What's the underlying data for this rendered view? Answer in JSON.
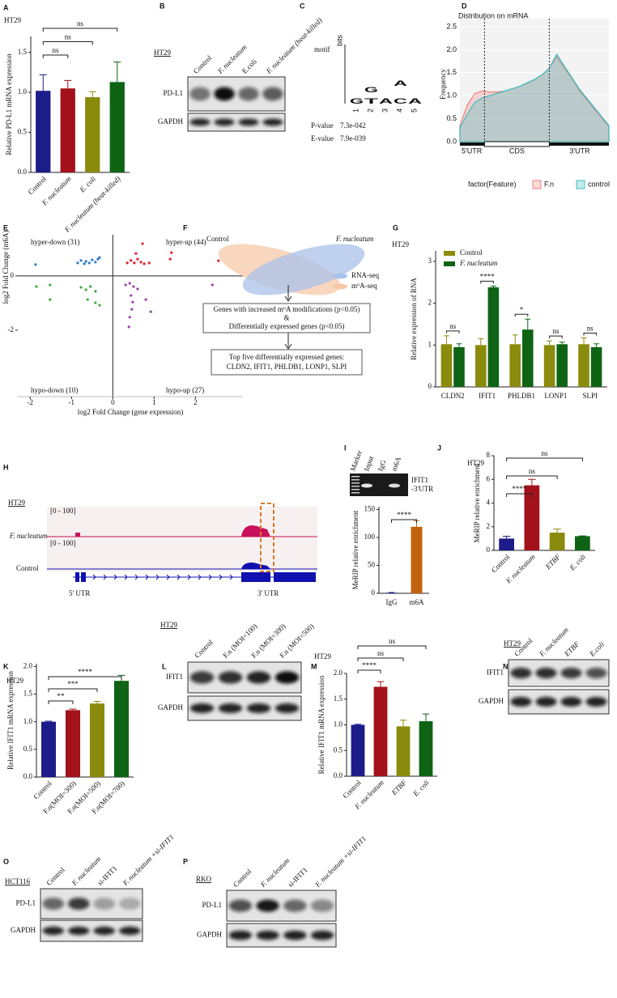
{
  "chart_data": [
    {
      "type": "bar",
      "panel": "A",
      "header": "HT29",
      "ylabel": "Relative PD-L1 mRNA expression",
      "categories": [
        "Control",
        "F. nucleatum",
        "E. coli",
        "F. nucleatum (heat-killed)"
      ],
      "values": [
        1.02,
        1.05,
        0.94,
        1.13
      ],
      "errors": [
        0.2,
        0.1,
        0.07,
        0.25
      ],
      "colors": [
        "#1c1c8a",
        "#a3121a",
        "#8a8a0c",
        "#0e6414"
      ],
      "ylim": [
        0,
        1.7
      ],
      "yticks": [
        {
          "value": 0,
          "label": "0.0"
        },
        {
          "value": 0.5,
          "label": "0.5"
        },
        {
          "value": 1,
          "label": "1.0"
        },
        {
          "value": 1.5,
          "label": "1.5"
        }
      ],
      "significance": [
        "ns",
        "ns",
        "ns"
      ]
    },
    {
      "type": "area",
      "panel": "D",
      "title": "Distribution on mRNA",
      "ylabel": "Frequency",
      "ylim": [
        0,
        2.5
      ],
      "yticks": [
        {
          "value": 0,
          "label": "0.0"
        },
        {
          "value": 0.5,
          "label": "0.5"
        },
        {
          "value": 1,
          "label": "1.0"
        },
        {
          "value": 1.5,
          "label": "1.5"
        },
        {
          "value": 2,
          "label": "2.0"
        },
        {
          "value": 2.5,
          "label": "2.5"
        }
      ],
      "regions": [
        "5'UTR",
        "CDS",
        "3'UTR"
      ],
      "legend_title": "factor(Feature)",
      "series": [
        {
          "name": "F.n",
          "color": "#f08080",
          "values": [
            0.35,
            0.8,
            1.05,
            1.1,
            1.08,
            1.08,
            1.1,
            1.15,
            1.2,
            1.27,
            1.35,
            1.45,
            1.6,
            1.85,
            1.6,
            1.38,
            1.12,
            0.92,
            0.72,
            0.52,
            0.33
          ]
        },
        {
          "name": "control",
          "color": "#3cbcbc",
          "values": [
            0.3,
            0.6,
            0.85,
            0.95,
            1.0,
            1.05,
            1.1,
            1.15,
            1.2,
            1.28,
            1.35,
            1.45,
            1.6,
            1.9,
            1.65,
            1.4,
            1.15,
            0.95,
            0.75,
            0.55,
            0.35
          ]
        }
      ]
    },
    {
      "type": "scatter",
      "panel": "E",
      "xlabel": "log2 Fold Change (gene expression)",
      "ylabel": "log2 Fold Change (m6A)",
      "xlim": [
        -2.3,
        3.15
      ],
      "ylim": [
        -4.45,
        1.52
      ],
      "xticks": [
        -2,
        -1,
        0,
        1,
        2
      ],
      "yticks": [
        -2,
        0
      ],
      "series": [
        {
          "name": "hyper-down (31)",
          "color": "#2b7bbf",
          "x": [
            -1.87,
            -0.85,
            -0.77,
            -0.65,
            -0.57,
            -0.5,
            -0.42,
            -0.36,
            -0.32,
            -0.69
          ],
          "y": [
            0.42,
            0.48,
            0.57,
            0.54,
            0.48,
            0.59,
            0.51,
            0.62,
            0.68,
            0.45
          ]
        },
        {
          "name": "hyper-up (44)",
          "color": "#e0202a",
          "x": [
            0.35,
            0.44,
            0.52,
            0.6,
            0.68,
            0.76,
            0.88,
            0.56,
            0.72,
            1.39,
            1.42,
            2.56
          ],
          "y": [
            0.48,
            0.57,
            0.48,
            0.62,
            0.51,
            0.45,
            0.48,
            0.83,
            1.19,
            0.62,
            0.86,
            0.56
          ]
        },
        {
          "name": "hypo-down (10)",
          "color": "#3daa3d",
          "x": [
            -1.85,
            -1.52,
            -1.52,
            -0.77,
            -0.65,
            -0.54,
            -0.42,
            -0.61,
            -0.42,
            -0.32
          ],
          "y": [
            -0.39,
            -0.33,
            -0.87,
            -0.42,
            -0.51,
            -0.39,
            -0.57,
            -0.87,
            -0.99,
            -1.08
          ]
        },
        {
          "name": "hypo-up (27)",
          "color": "#a040b0",
          "x": [
            0.31,
            0.41,
            0.5,
            0.6,
            0.44,
            0.48,
            0.46,
            0.41,
            0.39,
            0.8,
            0.92,
            2.41
          ],
          "y": [
            -0.33,
            -0.27,
            -0.39,
            -0.48,
            -0.72,
            -0.96,
            -1.23,
            -1.52,
            -1.88,
            -0.87,
            -1.32,
            -0.33
          ]
        }
      ]
    },
    {
      "type": "grouped_bar",
      "panel": "G",
      "header": "HT29",
      "ylabel": "Relative expression of RNA",
      "categories": [
        "CLDN2",
        "IFIT1",
        "PHLDB1",
        "LONP1",
        "SLPI"
      ],
      "series": [
        {
          "name": "Control",
          "color": "#8a8a0c",
          "values": [
            1.02,
            1.0,
            1.02,
            1.0,
            1.02
          ],
          "errors": [
            0.2,
            0.15,
            0.22,
            0.1,
            0.15
          ]
        },
        {
          "name": "F. nucleatum",
          "color": "#0e6414",
          "values": [
            0.95,
            2.38,
            1.37,
            1.02,
            0.95
          ],
          "errors": [
            0.08,
            0.03,
            0.25,
            0.05,
            0.08
          ]
        }
      ],
      "ylim": [
        0,
        3.25
      ],
      "yticks": [
        0,
        1,
        2,
        3
      ],
      "significance": [
        "ns",
        "****",
        "*",
        "ns",
        "ns"
      ]
    },
    {
      "type": "bar",
      "panel": "I",
      "ylabel": "MeRIP relative enrichment",
      "categories": [
        "IgG",
        "m6A"
      ],
      "values": [
        1,
        119
      ],
      "errors": [
        0.5,
        11
      ],
      "colors": [
        "#1c1c8a",
        "#c2620c"
      ],
      "ylim": [
        0,
        155
      ],
      "yticks": [
        0,
        50,
        100,
        150
      ],
      "significance": [
        "****"
      ]
    },
    {
      "type": "bar",
      "panel": "J",
      "header": "HT29",
      "ylabel": "MeRIP relative enrichment",
      "categories": [
        "Control",
        "F. nucleatum",
        "ETBF",
        "E. coli"
      ],
      "values": [
        1.0,
        5.5,
        1.5,
        1.2
      ],
      "errors": [
        0.2,
        0.5,
        0.3,
        0.02
      ],
      "colors": [
        "#1c1c8a",
        "#a3121a",
        "#8a8a0c",
        "#0e6414"
      ],
      "ylim": [
        0,
        8
      ],
      "yticks": [
        0,
        2,
        4,
        6,
        8
      ],
      "significance": [
        "****",
        "ns",
        "ns"
      ]
    },
    {
      "type": "bar",
      "panel": "K",
      "header": "HT29",
      "ylabel": "Relative IFIT1 mRNA expression",
      "categories": [
        "Control",
        "F.n(MOI=300)",
        "F.n(MOI=500)",
        "F.n(MOI=700)"
      ],
      "values": [
        1.0,
        1.21,
        1.33,
        1.74
      ],
      "errors": [
        0.01,
        0.02,
        0.04,
        0.1
      ],
      "colors": [
        "#1c1c8a",
        "#a3121a",
        "#8a8a0c",
        "#0e6414"
      ],
      "ylim": [
        0,
        2.05
      ],
      "yticks": [
        {
          "value": 0,
          "label": "0.0"
        },
        {
          "value": 0.5,
          "label": "0.5"
        },
        {
          "value": 1,
          "label": "1.0"
        },
        {
          "value": 1.5,
          "label": "1.5"
        },
        {
          "value": 2,
          "label": "2.0"
        }
      ],
      "significance": [
        "**",
        "***",
        "****"
      ]
    },
    {
      "type": "bar",
      "panel": "M",
      "header": "HT29",
      "ylabel": "Relative IFIT1 mRNA expression",
      "categories": [
        "Control",
        "F. nucleatum",
        "ETBF",
        "E. coli"
      ],
      "values": [
        1.0,
        1.74,
        0.97,
        1.07
      ],
      "errors": [
        0.01,
        0.1,
        0.12,
        0.14
      ],
      "colors": [
        "#1c1c8a",
        "#a3121a",
        "#8a8a0c",
        "#0e6414"
      ],
      "ylim": [
        0,
        2
      ],
      "yticks": [
        {
          "value": 0,
          "label": "0.0"
        },
        {
          "value": 0.5,
          "label": "0.5"
        },
        {
          "value": 1,
          "label": "1.0"
        },
        {
          "value": 1.5,
          "label": "1.5"
        },
        {
          "value": 2,
          "label": "2.0"
        }
      ],
      "significance": [
        "****",
        "ns",
        "ns"
      ]
    }
  ],
  "figure": {
    "blots": [
      {
        "panel": "B",
        "cell_line": "HT29",
        "lanes": [
          "Control",
          "F. nucleatum",
          "E.coli",
          "F. nucleatum (heat-killed)"
        ],
        "rows": [
          "PD-L1",
          "GAPDH"
        ]
      },
      {
        "panel": "L",
        "cell_line": "HT29",
        "lanes": [
          "Control",
          "F.n (MOI=100)",
          "F.n (MOI=300)",
          "F.n (MOI=500)"
        ],
        "rows": [
          "IFIT1",
          "GAPDH"
        ]
      },
      {
        "panel": "N",
        "cell_line": "HT29",
        "lanes": [
          "Control",
          "F. nucleatum",
          "ETBF",
          "E.coli"
        ],
        "rows": [
          "IFIT1",
          "GAPDH"
        ]
      },
      {
        "panel": "O",
        "cell_line": "HCT116",
        "lanes": [
          "Control",
          "F. nucleatum",
          "si-IFIT1",
          "F. nucleatum +si-IFIT1"
        ],
        "rows": [
          "PD-L1",
          "GAPDH"
        ]
      },
      {
        "panel": "P",
        "cell_line": "RKO",
        "lanes": [
          "Control",
          "F. nucleatum",
          "si-IFIT1",
          "F. nucleatum +si-IFIT1"
        ],
        "rows": [
          "PD-L1",
          "GAPDH"
        ]
      }
    ],
    "motif": {
      "panel": "C",
      "title": "motif",
      "axis": "bits",
      "columns": [
        [
          "G"
        ],
        [
          "G",
          "T"
        ],
        [
          "A"
        ],
        [
          "A",
          "C"
        ],
        [
          "A"
        ]
      ],
      "positions": [
        "1",
        "2",
        "3",
        "4",
        "5"
      ],
      "stats": [
        {
          "name": "P-value",
          "value": "7.3e-042"
        },
        {
          "name": "E-value",
          "value": "7.9e-039"
        }
      ]
    },
    "venn": {
      "panel": "F",
      "sets": [
        "Control",
        "F. nucleatum"
      ],
      "legend": [
        "RNA-seq",
        "m⁶A-seq"
      ],
      "criteria": [
        "Genes with increased m⁶A modifications (p<0.05)",
        "&",
        "Differentially expressed genes (p<0.05)"
      ],
      "result": [
        "Top five differentially expressed genes:",
        "CLDN2, IFIT1, PHLDB1, LONP1, SLPI"
      ]
    },
    "track": {
      "panel": "H",
      "cell_line": "HT29",
      "ranges": [
        "[0 - 100]",
        "[0 - 100]"
      ],
      "tracks": [
        "F. nucleatum",
        "Control"
      ],
      "regions": [
        "5' UTR",
        "3' UTR"
      ]
    },
    "gel": {
      "lanes": [
        "Marker",
        "Input",
        "IgG",
        "m6A"
      ],
      "target": [
        "IFIT1",
        "-3'UTR"
      ]
    }
  }
}
